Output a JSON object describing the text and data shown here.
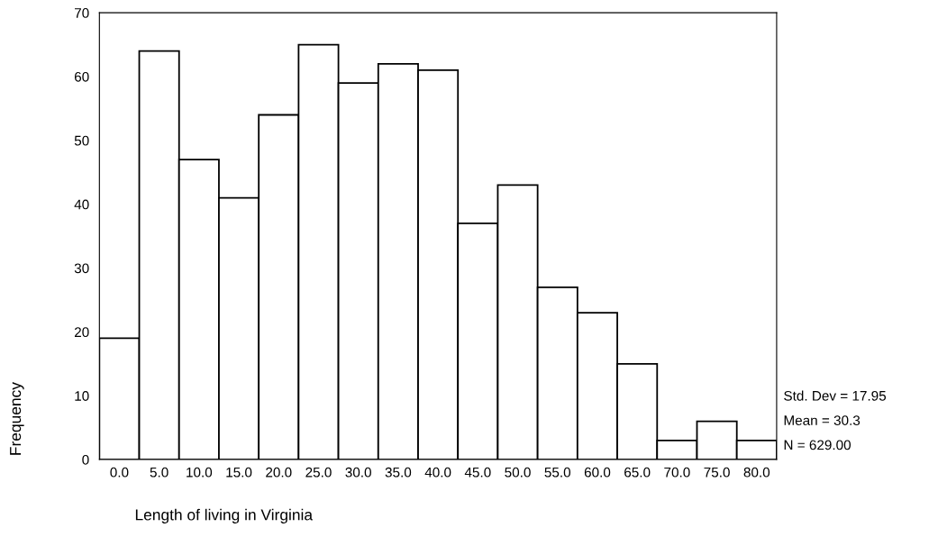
{
  "chart_data": {
    "type": "histogram",
    "xlabel": "Length of living in Virginia",
    "ylabel": "Frequency",
    "bins": [
      -2.5,
      2.5,
      7.5,
      12.5,
      17.5,
      22.5,
      27.5,
      32.5,
      37.5,
      42.5,
      47.5,
      52.5,
      57.5,
      62.5,
      67.5,
      72.5,
      77.5,
      82.5
    ],
    "values": [
      19,
      64,
      47,
      41,
      54,
      65,
      59,
      62,
      61,
      37,
      43,
      27,
      23,
      15,
      3,
      6,
      3
    ],
    "color": "#ffffff",
    "xlim": [
      -2.5,
      82.5
    ],
    "xticks": [
      {
        "value": 0,
        "label": "0.0"
      },
      {
        "value": 5,
        "label": "5.0"
      },
      {
        "value": 10,
        "label": "10.0"
      },
      {
        "value": 15,
        "label": "15.0"
      },
      {
        "value": 20,
        "label": "20.0"
      },
      {
        "value": 25,
        "label": "25.0"
      },
      {
        "value": 30,
        "label": "30.0"
      },
      {
        "value": 35,
        "label": "35.0"
      },
      {
        "value": 40,
        "label": "40.0"
      },
      {
        "value": 45,
        "label": "45.0"
      },
      {
        "value": 50,
        "label": "50.0"
      },
      {
        "value": 55,
        "label": "55.0"
      },
      {
        "value": 60,
        "label": "60.0"
      },
      {
        "value": 65,
        "label": "65.0"
      },
      {
        "value": 70,
        "label": "70.0"
      },
      {
        "value": 75,
        "label": "75.0"
      },
      {
        "value": 80,
        "label": "80.0"
      }
    ],
    "ylim": [
      0,
      70
    ],
    "yticks": [
      0,
      10,
      20,
      30,
      40,
      50,
      60,
      70
    ],
    "grid": false,
    "legend": false,
    "annotations": [
      "Std. Dev = 17.95",
      "Mean = 30.3",
      "N = 629.00"
    ]
  }
}
